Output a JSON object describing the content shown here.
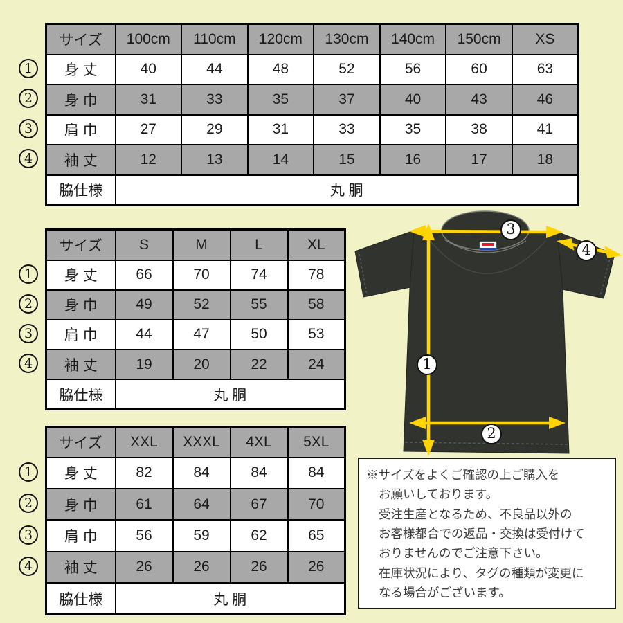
{
  "colors": {
    "background": "#f1f2c6",
    "table_header_gray": "#a8a8a8",
    "table_border": "#000000",
    "shirt_body": "#31342e",
    "arrow_yellow": "#ffd400",
    "note_background": "#ffffff"
  },
  "tables": [
    {
      "name": "kids-xs",
      "headers": [
        "サイズ",
        "100cm",
        "110cm",
        "120cm",
        "130cm",
        "140cm",
        "150cm",
        "XS"
      ],
      "rows": [
        {
          "num": "1",
          "label": "身 丈",
          "values": [
            "40",
            "44",
            "48",
            "52",
            "56",
            "60",
            "63"
          ]
        },
        {
          "num": "2",
          "label": "身 巾",
          "values": [
            "31",
            "33",
            "35",
            "37",
            "40",
            "43",
            "46"
          ]
        },
        {
          "num": "3",
          "label": "肩 巾",
          "values": [
            "27",
            "29",
            "31",
            "33",
            "35",
            "38",
            "41"
          ]
        },
        {
          "num": "4",
          "label": "袖 丈",
          "values": [
            "12",
            "13",
            "14",
            "15",
            "16",
            "17",
            "18"
          ]
        }
      ],
      "footer_label": "脇仕様",
      "footer_value": "丸 胴"
    },
    {
      "name": "s-xl",
      "headers": [
        "サイズ",
        "S",
        "M",
        "L",
        "XL"
      ],
      "rows": [
        {
          "num": "1",
          "label": "身 丈",
          "values": [
            "66",
            "70",
            "74",
            "78"
          ]
        },
        {
          "num": "2",
          "label": "身 巾",
          "values": [
            "49",
            "52",
            "55",
            "58"
          ]
        },
        {
          "num": "3",
          "label": "肩 巾",
          "values": [
            "44",
            "47",
            "50",
            "53"
          ]
        },
        {
          "num": "4",
          "label": "袖 丈",
          "values": [
            "19",
            "20",
            "22",
            "24"
          ]
        }
      ],
      "footer_label": "脇仕様",
      "footer_value": "丸 胴"
    },
    {
      "name": "xxl-5xl",
      "headers": [
        "サイズ",
        "XXL",
        "XXXL",
        "4XL",
        "5XL"
      ],
      "rows": [
        {
          "num": "1",
          "label": "身 丈",
          "values": [
            "82",
            "84",
            "84",
            "84"
          ]
        },
        {
          "num": "2",
          "label": "身 巾",
          "values": [
            "61",
            "64",
            "67",
            "70"
          ]
        },
        {
          "num": "3",
          "label": "肩 巾",
          "values": [
            "56",
            "59",
            "62",
            "65"
          ]
        },
        {
          "num": "4",
          "label": "袖 丈",
          "values": [
            "26",
            "26",
            "26",
            "26"
          ]
        }
      ],
      "footer_label": "脇仕様",
      "footer_value": "丸 胴"
    }
  ],
  "diagram": {
    "markers": {
      "m1": "1",
      "m2": "2",
      "m3": "3",
      "m4": "4"
    }
  },
  "note": {
    "lines": [
      "※サイズをよくご確認の上ご購入を",
      "お願いしております。",
      "受注生産となるため、不良品以外の",
      "お客様都合での返品・交換は受付けて",
      "おりませんのでご注意下さい。",
      "在庫状況により、タグの種類が変更に",
      "なる場合がございます。"
    ]
  }
}
